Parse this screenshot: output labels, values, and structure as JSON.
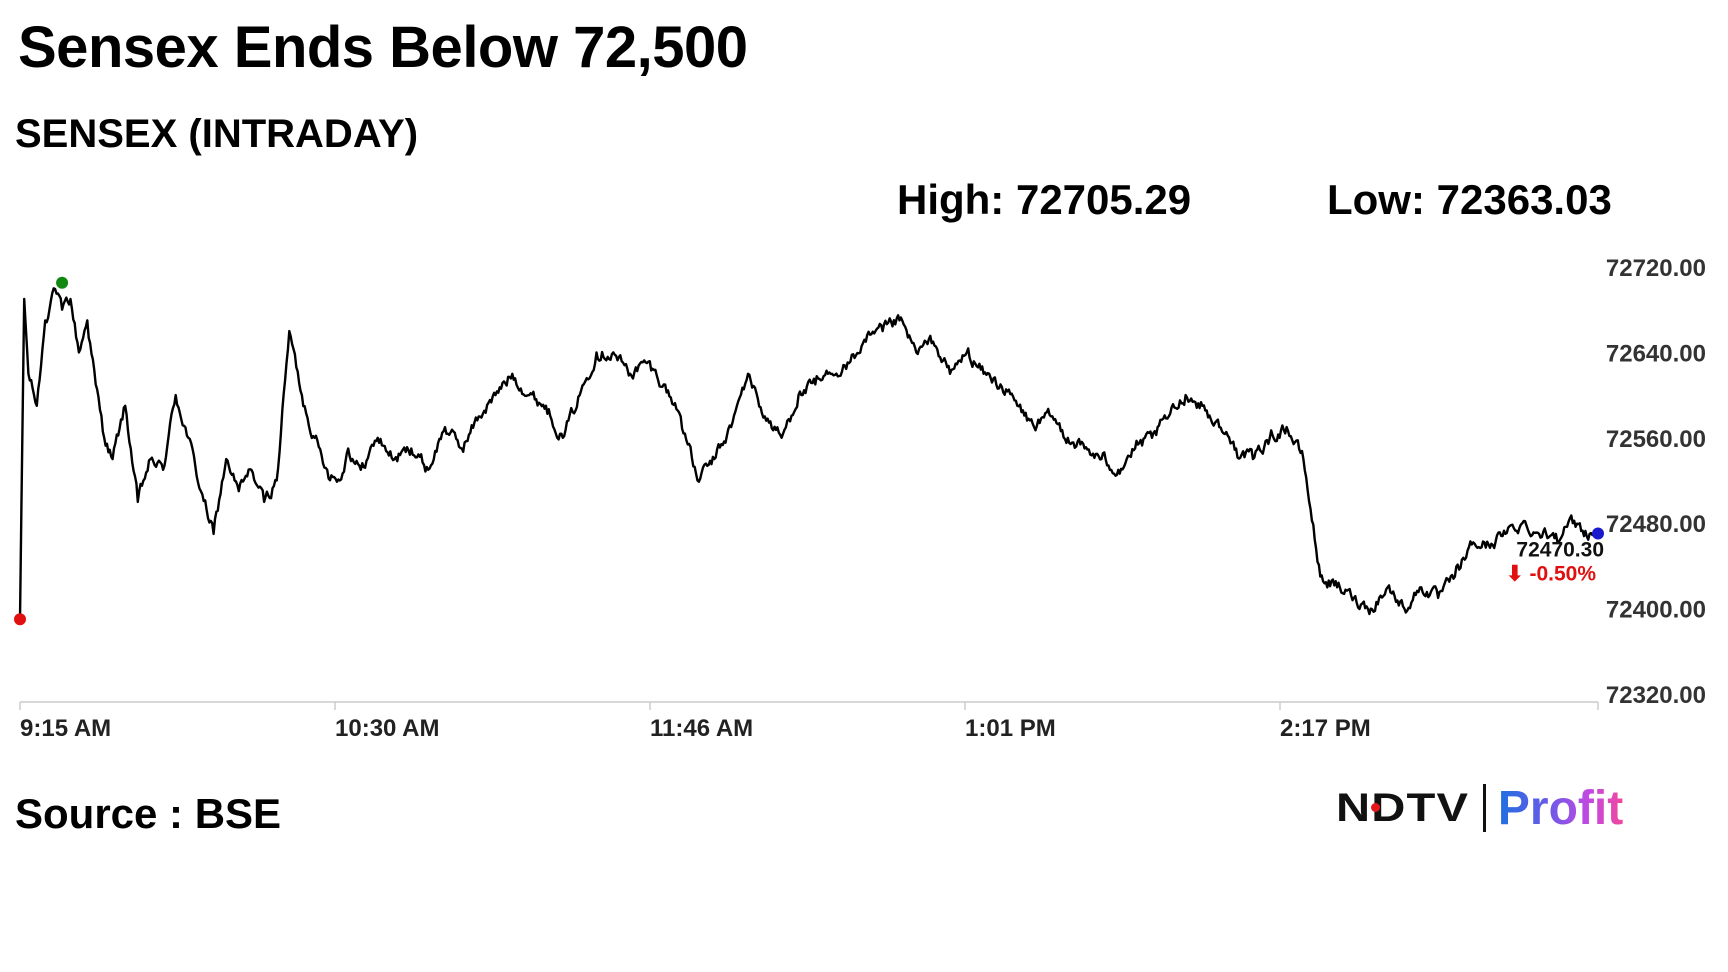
{
  "headline": "Sensex Ends Below 72,500",
  "subtitle": "SENSEX (INTRADAY)",
  "stats": {
    "high": "High: 72705.29",
    "low": "Low: 72363.03"
  },
  "source": "Source : BSE",
  "logo": {
    "brand": "NDTV",
    "product": "Profit"
  },
  "colors": {
    "line": "#000000",
    "open_marker": "#e01010",
    "high_marker": "#118811",
    "last_marker": "#1a1acc",
    "change_negative": "#e01010",
    "axis": "#cccccc"
  },
  "chart_data": {
    "type": "line",
    "title": "SENSEX (INTRADAY)",
    "xlabel": "",
    "ylabel": "",
    "x_ticks": [
      "9:15 AM",
      "10:30 AM",
      "11:46 AM",
      "1:01 PM",
      "2:17 PM"
    ],
    "y_ticks": [
      "72720.00",
      "72640.00",
      "72560.00",
      "72480.00",
      "72400.00",
      "72320.00"
    ],
    "ylim": [
      72320,
      72720
    ],
    "grid": false,
    "legend": "none",
    "series": [
      {
        "x": [
          "9:15",
          "9:16",
          "9:17",
          "9:19",
          "9:21",
          "9:23",
          "9:25",
          "9:27",
          "9:29",
          "9:31",
          "9:33",
          "9:35",
          "9:37",
          "9:40",
          "9:43",
          "9:46",
          "9:49",
          "9:52",
          "9:55",
          "9:58",
          "10:01",
          "10:04",
          "10:07",
          "10:10",
          "10:13",
          "10:16",
          "10:19",
          "10:22",
          "10:25",
          "10:28",
          "10:31",
          "10:33",
          "10:36",
          "10:40",
          "10:44",
          "10:48",
          "10:52",
          "10:56",
          "11:00",
          "11:04",
          "11:08",
          "11:12",
          "11:16",
          "11:20",
          "11:24",
          "11:28",
          "11:32",
          "11:36",
          "11:40",
          "11:44",
          "11:48",
          "11:52",
          "11:56",
          "12:00",
          "12:04",
          "12:08",
          "12:12",
          "12:16",
          "12:20",
          "12:24",
          "12:28",
          "12:32",
          "12:36",
          "12:40",
          "12:44",
          "12:48",
          "12:52",
          "12:56",
          "13:00",
          "13:04",
          "13:08",
          "13:12",
          "13:16",
          "13:20",
          "13:24",
          "13:28",
          "13:32",
          "13:36",
          "13:40",
          "13:44",
          "13:48",
          "13:52",
          "13:56",
          "14:00",
          "14:04",
          "14:08",
          "14:12",
          "14:16",
          "14:20",
          "14:24",
          "14:28",
          "14:32",
          "14:36",
          "14:40",
          "14:44",
          "14:48",
          "14:52",
          "14:56",
          "15:00",
          "15:04",
          "15:08",
          "15:12",
          "15:16",
          "15:20",
          "15:24",
          "15:28",
          "15:30"
        ],
        "values": [
          72390,
          72690,
          72620,
          72590,
          72670,
          72700,
          72680,
          72690,
          72640,
          72670,
          72610,
          72560,
          72540,
          72590,
          72500,
          72540,
          72530,
          72600,
          72560,
          72510,
          72470,
          72540,
          72510,
          72530,
          72500,
          72520,
          72660,
          72600,
          72560,
          72530,
          72520,
          72550,
          72530,
          72560,
          72540,
          72550,
          72530,
          72570,
          72550,
          72580,
          72600,
          72620,
          72600,
          72590,
          72560,
          72600,
          72640,
          72640,
          72620,
          72630,
          72610,
          72580,
          72520,
          72540,
          72570,
          72620,
          72580,
          72560,
          72600,
          72610,
          72620,
          72630,
          72650,
          72660,
          72670,
          72640,
          72650,
          72620,
          72640,
          72620,
          72610,
          72590,
          72570,
          72580,
          72560,
          72550,
          72540,
          72530,
          72550,
          72560,
          72580,
          72600,
          72590,
          72570,
          72550,
          72540,
          72560,
          72570,
          72540,
          72430,
          72420,
          72410,
          72400,
          72420,
          72400,
          72420,
          72410,
          72430,
          72460,
          72460,
          72470,
          72480,
          72470,
          72470,
          72480,
          72470,
          72470.3
        ]
      }
    ],
    "markers": {
      "open": 72390,
      "high": 72705.29,
      "low": 72363.03,
      "last": 72470.3
    },
    "last_value_label": "72470.30",
    "change_label": "⬇ -0.50%"
  }
}
